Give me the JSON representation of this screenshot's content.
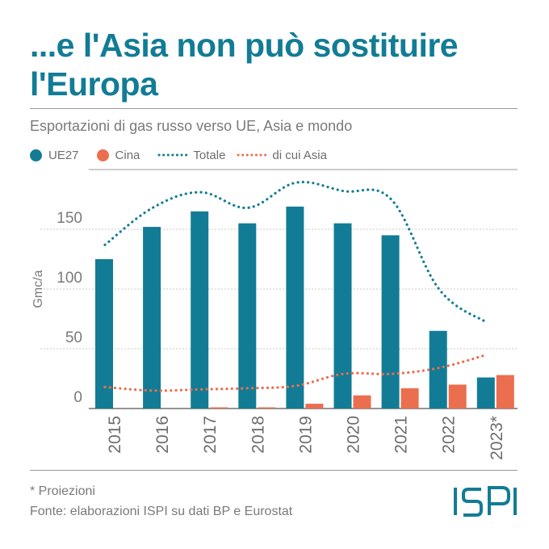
{
  "header": {
    "title": "...e l'Asia non può sostituire l'Europa",
    "subtitle": "Esportazioni di gas russo verso UE, Asia e mondo"
  },
  "legend": {
    "items": [
      {
        "label": "UE27",
        "kind": "bar",
        "color": "#127c96"
      },
      {
        "label": "Cina",
        "kind": "bar",
        "color": "#eb6e4f"
      },
      {
        "label": "Totale",
        "kind": "dotted-line",
        "color": "#127c96"
      },
      {
        "label": "di cui Asia",
        "kind": "dotted-line",
        "color": "#eb6e4f"
      }
    ]
  },
  "footer": {
    "note": "* Proiezioni",
    "source": "Fonte: elaborazioni ISPI su dati BP e Eurostat",
    "logo_text": "ISPI"
  },
  "chart_data": {
    "type": "bar",
    "categories": [
      "2015",
      "2016",
      "2017",
      "2018",
      "2019",
      "2020",
      "2021",
      "2022",
      "2023*"
    ],
    "ylabel": "Gmc/a",
    "ylim": [
      0,
      200
    ],
    "yticks": [
      0,
      50,
      100,
      150
    ],
    "grid": true,
    "series": [
      {
        "name": "UE27",
        "type": "bar",
        "color": "#127c96",
        "values": [
          125,
          152,
          165,
          155,
          169,
          155,
          145,
          65,
          26
        ]
      },
      {
        "name": "Cina",
        "type": "bar",
        "color": "#eb6e4f",
        "values": [
          0,
          0,
          1,
          1,
          4,
          11,
          17,
          20,
          28
        ]
      },
      {
        "name": "Totale",
        "type": "line",
        "style": "dotted",
        "color": "#127c96",
        "values": [
          137,
          168,
          181,
          168,
          189,
          182,
          175,
          100,
          72
        ]
      },
      {
        "name": "di cui Asia",
        "type": "line",
        "style": "dotted",
        "color": "#eb6e4f",
        "values": [
          18,
          15,
          16,
          17,
          19,
          29,
          29,
          34,
          45
        ]
      }
    ]
  }
}
